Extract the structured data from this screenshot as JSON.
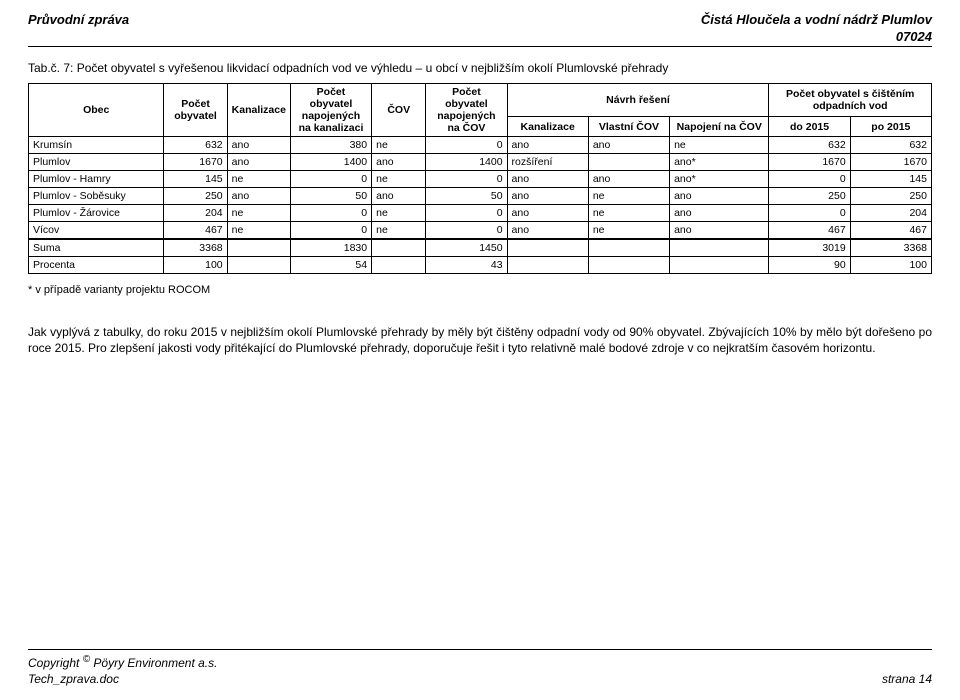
{
  "header": {
    "left": "Průvodní zpráva",
    "right_title": "Čistá Hloučela a vodní nádrž Plumlov",
    "code": "07024"
  },
  "caption": "Tab.č. 7: Počet obyvatel s vyřešenou likvidací odpadních vod ve výhledu – u obcí v nejbližším okolí Plumlovské přehrady",
  "table": {
    "head": {
      "obec": "Obec",
      "pocet_obyv": "Počet obyvatel",
      "kanalizace": "Kanalizace",
      "napoj_kanal": "Počet obyvatel napojených na kanalizaci",
      "cov": "ČOV",
      "napoj_cov": "Počet obyvatel napojených na ČOV",
      "navrh": "Návrh řešení",
      "navrh_sub": {
        "kanal": "Kanalizace",
        "vlastni": "Vlastní ČOV",
        "napoj": "Napojení na ČOV"
      },
      "cisteni": "Počet obyvatel s čištěním odpadních vod",
      "cisteni_sub": {
        "do2015": "do 2015",
        "po2015": "po 2015"
      }
    },
    "rows": [
      {
        "obec": "Krumsín",
        "po": 632,
        "kan": "ano",
        "nk": 380,
        "cov": "ne",
        "nc": 0,
        "k2": "ano",
        "v": "ano",
        "n": "ne",
        "d": 632,
        "p": 632
      },
      {
        "obec": "Plumlov",
        "po": 1670,
        "kan": "ano",
        "nk": 1400,
        "cov": "ano",
        "nc": 1400,
        "k2": "rozšíření",
        "v": "",
        "n": "ano*",
        "d": 1670,
        "p": 1670
      },
      {
        "obec": "Plumlov - Hamry",
        "po": 145,
        "kan": "ne",
        "nk": 0,
        "cov": "ne",
        "nc": 0,
        "k2": "ano",
        "v": "ano",
        "n": "ano*",
        "d": 0,
        "p": 145
      },
      {
        "obec": "Plumlov - Soběsuky",
        "po": 250,
        "kan": "ano",
        "nk": 50,
        "cov": "ano",
        "nc": 50,
        "k2": "ano",
        "v": "ne",
        "n": "ano",
        "d": 250,
        "p": 250
      },
      {
        "obec": "Plumlov - Žárovice",
        "po": 204,
        "kan": "ne",
        "nk": 0,
        "cov": "ne",
        "nc": 0,
        "k2": "ano",
        "v": "ne",
        "n": "ano",
        "d": 0,
        "p": 204
      },
      {
        "obec": "Vícov",
        "po": 467,
        "kan": "ne",
        "nk": 0,
        "cov": "ne",
        "nc": 0,
        "k2": "ano",
        "v": "ne",
        "n": "ano",
        "d": 467,
        "p": 467
      }
    ],
    "suma": {
      "obec": "Suma",
      "po": 3368,
      "kan": "",
      "nk": 1830,
      "cov": "",
      "nc": 1450,
      "k2": "",
      "v": "",
      "n": "",
      "d": 3019,
      "p": 3368
    },
    "procenta": {
      "obec": "Procenta",
      "po": 100,
      "kan": "",
      "nk": 54,
      "cov": "",
      "nc": 43,
      "k2": "",
      "v": "",
      "n": "",
      "d": 90,
      "p": 100
    }
  },
  "footnote": "* v případě varianty projektu ROCOM",
  "paragraph": "Jak vyplývá z tabulky, do roku 2015 v nejbližším okolí Plumlovské přehrady by měly být čištěny odpadní vody od 90% obyvatel. Zbývajících 10% by mělo být dořešeno po roce 2015. Pro zlepšení jakosti vody přitékající do Plumlovské přehrady, doporučuje řešit i tyto relativně malé bodové zdroje v co nejkratším časovém horizontu.",
  "footer": {
    "copyright_label": "Copyright ",
    "copyright_sym": "©",
    "company": " Pöyry Environment a.s.",
    "file": "Tech_zprava.doc",
    "page": "strana 14"
  },
  "col_widths": [
    "15%",
    "7%",
    "7%",
    "9%",
    "6%",
    "9%",
    "9%",
    "9%",
    "11%",
    "9%",
    "9%"
  ]
}
